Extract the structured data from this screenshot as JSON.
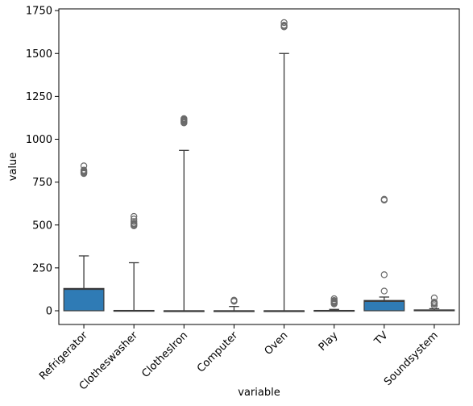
{
  "chart_data": {
    "type": "box",
    "title": "",
    "xlabel": "variable",
    "ylabel": "value",
    "ylim": [
      -80,
      1760
    ],
    "yticks": [
      0,
      250,
      500,
      750,
      1000,
      1250,
      1500,
      1750
    ],
    "categories": [
      "Refrigerator",
      "Clotheswasher",
      "ClothesIron",
      "Computer",
      "Oven",
      "Play",
      "TV",
      "Soundsystem"
    ],
    "box_color": "#2f7bb5",
    "series": [
      {
        "category": "Refrigerator",
        "q1": 0,
        "median": 125,
        "q3": 130,
        "whisker_low": 0,
        "whisker_high": 320,
        "outliers": [
          800,
          805,
          810,
          815,
          820,
          845
        ]
      },
      {
        "category": "Clotheswasher",
        "q1": 0,
        "median": 0,
        "q3": 2,
        "whisker_low": 0,
        "whisker_high": 280,
        "outliers": [
          495,
          500,
          505,
          510,
          520,
          535,
          550
        ]
      },
      {
        "category": "ClothesIron",
        "q1": 0,
        "median": 0,
        "q3": 0,
        "whisker_low": 0,
        "whisker_high": 935,
        "outliers": [
          1095,
          1100,
          1105,
          1110,
          1115,
          1120
        ]
      },
      {
        "category": "Computer",
        "q1": 0,
        "median": 0,
        "q3": 0,
        "whisker_low": 0,
        "whisker_high": 25,
        "outliers": [
          55,
          60,
          62
        ]
      },
      {
        "category": "Oven",
        "q1": 0,
        "median": 0,
        "q3": 0,
        "whisker_low": 0,
        "whisker_high": 1500,
        "outliers": [
          1655,
          1660,
          1665,
          1680
        ]
      },
      {
        "category": "Play",
        "q1": 0,
        "median": 0,
        "q3": 2,
        "whisker_low": 0,
        "whisker_high": 8,
        "outliers": [
          40,
          45,
          50,
          55,
          60,
          70
        ]
      },
      {
        "category": "TV",
        "q1": 0,
        "median": 55,
        "q3": 60,
        "whisker_low": 0,
        "whisker_high": 80,
        "outliers": [
          115,
          210,
          645,
          650
        ]
      },
      {
        "category": "Soundsystem",
        "q1": 0,
        "median": 3,
        "q3": 5,
        "whisker_low": 0,
        "whisker_high": 12,
        "outliers": [
          30,
          40,
          45,
          50,
          75
        ]
      }
    ]
  }
}
